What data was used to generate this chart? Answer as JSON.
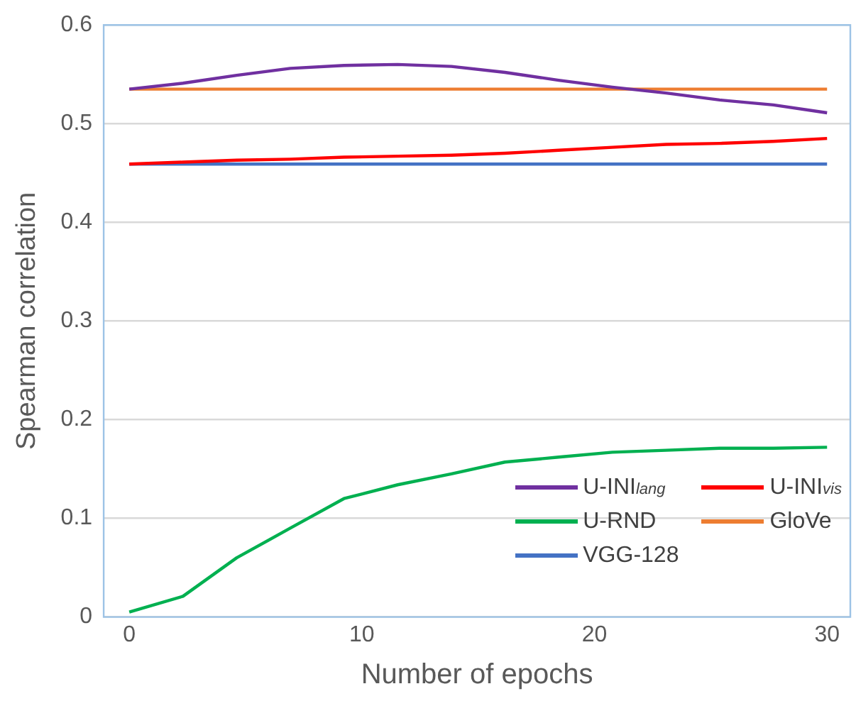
{
  "chart_data": {
    "type": "line",
    "xlabel": "Number of epochs",
    "ylabel": "Spearman correlation",
    "x": [
      0,
      2.31,
      4.62,
      6.92,
      9.23,
      11.54,
      13.85,
      16.15,
      18.46,
      20.77,
      23.08,
      25.38,
      27.69,
      30
    ],
    "xlim": [
      -1.1,
      31
    ],
    "xticks": [
      0,
      10,
      20,
      30
    ],
    "ylim": [
      0,
      0.6
    ],
    "yticks": [
      0,
      0.1,
      0.2,
      0.3,
      0.4,
      0.5,
      0.6
    ],
    "grid": "y",
    "legend": "bottom right",
    "marker": "none",
    "line_style": "solid",
    "series": [
      {
        "name": "U-INI$_{lang}$",
        "color": "#7030a0",
        "values": [
          0.535,
          0.541,
          0.549,
          0.556,
          0.559,
          0.56,
          0.558,
          0.552,
          0.544,
          0.537,
          0.531,
          0.524,
          0.519,
          0.511
        ]
      },
      {
        "name": "U-INI$_{vis}$",
        "color": "#ff0000",
        "values": [
          0.459,
          0.461,
          0.463,
          0.464,
          0.466,
          0.467,
          0.468,
          0.47,
          0.473,
          0.476,
          0.479,
          0.48,
          0.482,
          0.485
        ]
      },
      {
        "name": "U-RND",
        "color": "#00b050",
        "values": [
          0.005,
          0.021,
          0.06,
          0.09,
          0.12,
          0.134,
          0.145,
          0.157,
          0.162,
          0.167,
          0.169,
          0.171,
          0.171,
          0.172
        ]
      },
      {
        "name": "GloVe",
        "color": "#ed7d31",
        "values": [
          0.535,
          0.535,
          0.535,
          0.535,
          0.535,
          0.535,
          0.535,
          0.535,
          0.535,
          0.535,
          0.535,
          0.535,
          0.535,
          0.535
        ]
      },
      {
        "name": "VGG-128",
        "color": "#4472c4",
        "values": [
          0.459,
          0.459,
          0.459,
          0.459,
          0.459,
          0.459,
          0.459,
          0.459,
          0.459,
          0.459,
          0.459,
          0.459,
          0.459,
          0.459
        ]
      }
    ]
  }
}
